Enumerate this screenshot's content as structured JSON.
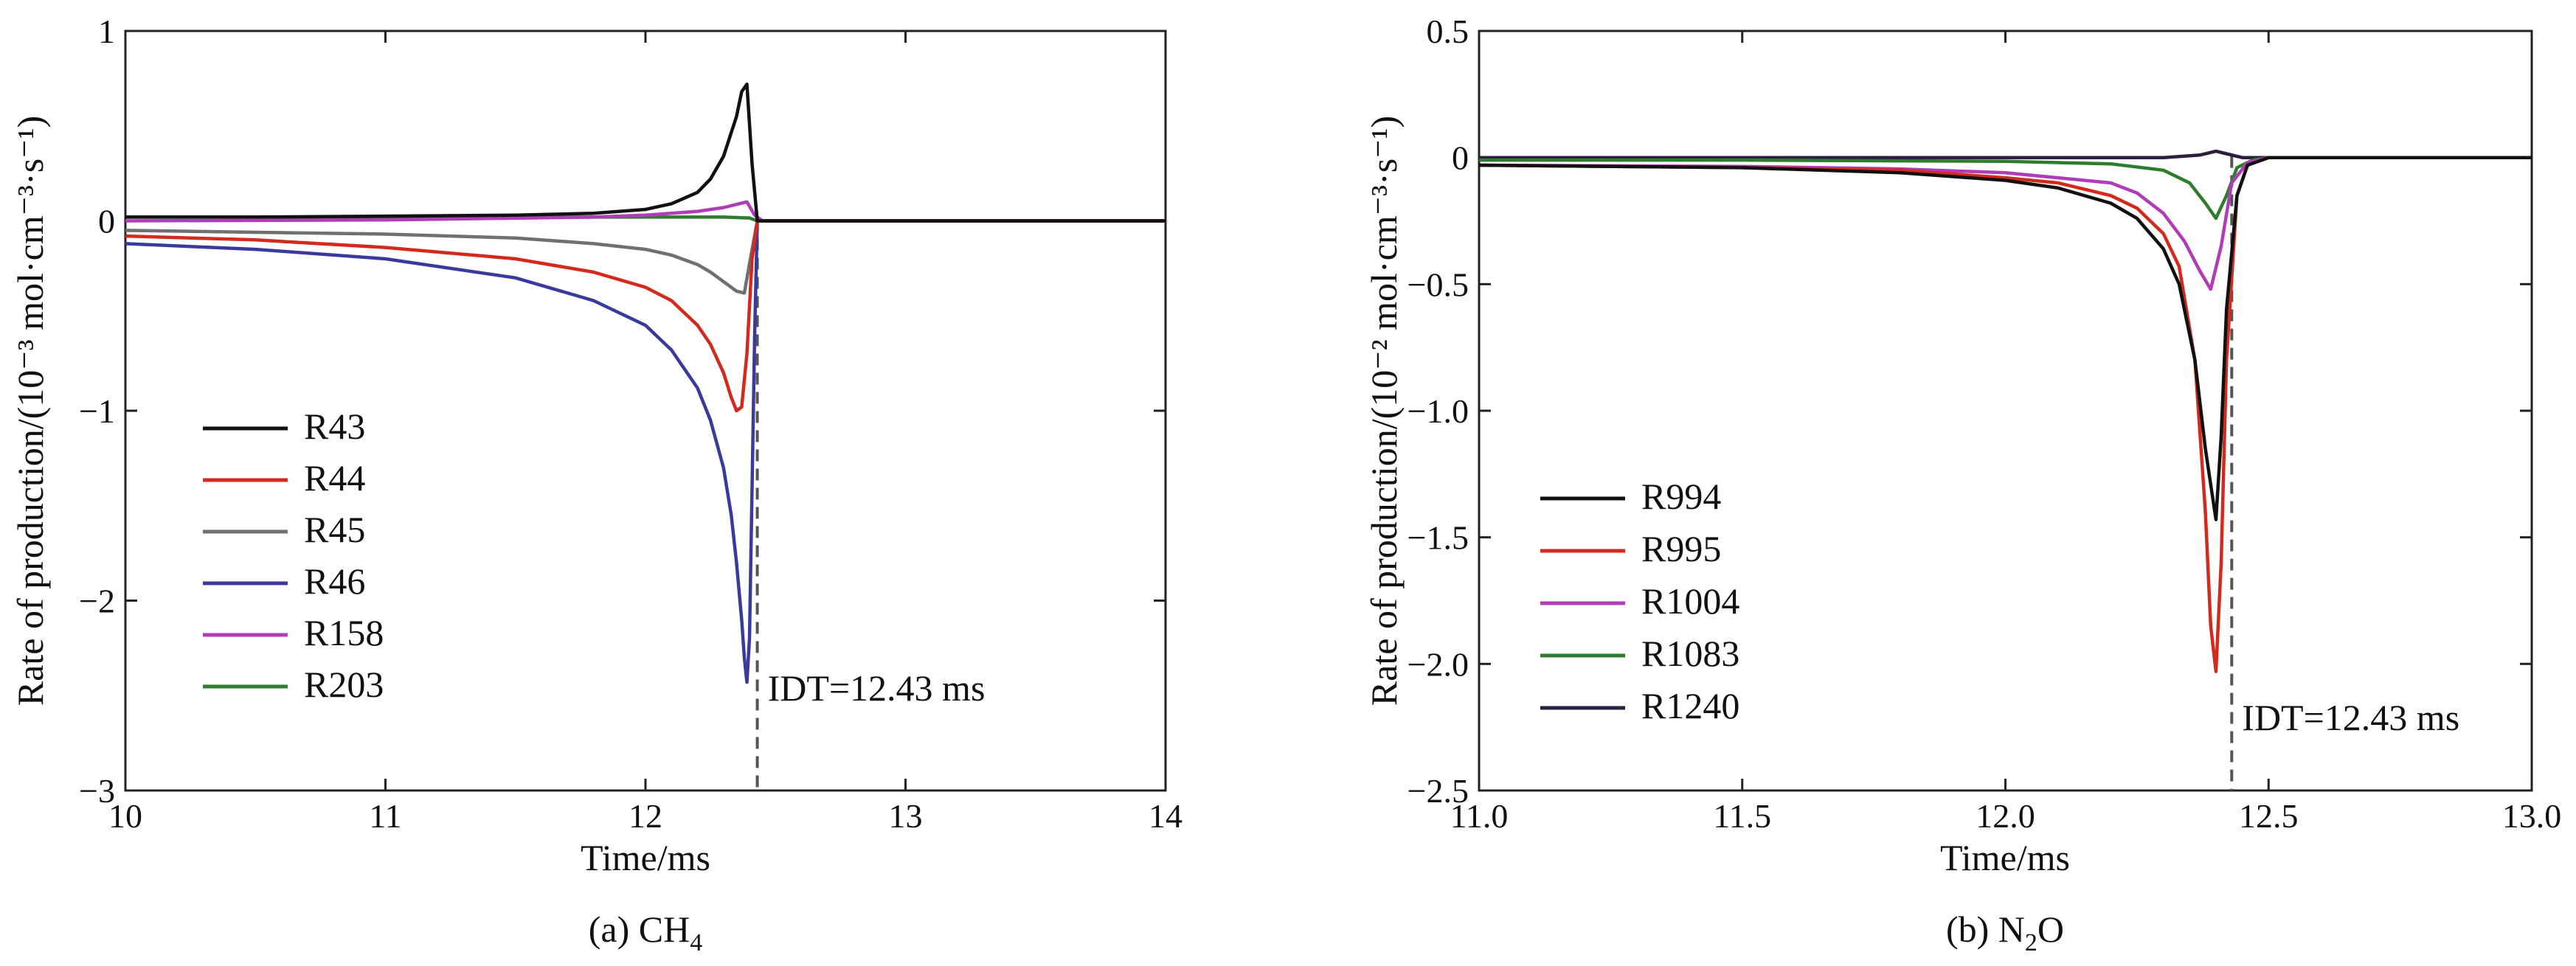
{
  "chart_data": [
    {
      "panel": "a",
      "type": "line",
      "caption": "(a) CH",
      "caption_sub": "4",
      "xlabel": "Time/ms",
      "ylabel": "Rate of production/(10⁻³ mol·cm⁻³·s⁻¹)",
      "xlim": [
        10,
        14
      ],
      "ylim": [
        -3,
        1
      ],
      "xticks": [
        10,
        11,
        12,
        13,
        14
      ],
      "yticks": [
        -3,
        -2,
        -1,
        0,
        1
      ],
      "xtick_labels": [
        "10",
        "11",
        "12",
        "13",
        "14"
      ],
      "ytick_labels": [
        "−3",
        "−2",
        "−1",
        "0",
        "1"
      ],
      "legend_position": "bottom-left",
      "annotation": {
        "text": "IDT=12.43 ms",
        "x": 12.43
      },
      "series": [
        {
          "name": "R43",
          "color": "#111111",
          "x": [
            10.0,
            10.5,
            11.0,
            11.5,
            11.8,
            12.0,
            12.1,
            12.2,
            12.25,
            12.3,
            12.35,
            12.37,
            12.39,
            12.41,
            12.43,
            12.45,
            13.0,
            14.0
          ],
          "y": [
            0.02,
            0.02,
            0.025,
            0.03,
            0.04,
            0.06,
            0.09,
            0.15,
            0.22,
            0.34,
            0.55,
            0.68,
            0.72,
            0.3,
            0.0,
            0.0,
            0.0,
            0.0
          ]
        },
        {
          "name": "R44",
          "color": "#d42a1e",
          "x": [
            10.0,
            10.5,
            11.0,
            11.5,
            11.8,
            12.0,
            12.1,
            12.2,
            12.25,
            12.3,
            12.33,
            12.35,
            12.37,
            12.39,
            12.41,
            12.43,
            12.45,
            13.0,
            14.0
          ],
          "y": [
            -0.08,
            -0.1,
            -0.14,
            -0.2,
            -0.27,
            -0.35,
            -0.42,
            -0.55,
            -0.65,
            -0.8,
            -0.93,
            -1.0,
            -0.98,
            -0.7,
            -0.2,
            0.0,
            0.0,
            0.0,
            0.0
          ]
        },
        {
          "name": "R45",
          "color": "#707070",
          "x": [
            10.0,
            10.5,
            11.0,
            11.5,
            11.8,
            12.0,
            12.1,
            12.2,
            12.25,
            12.3,
            12.35,
            12.38,
            12.41,
            12.43,
            12.45,
            13.0,
            14.0
          ],
          "y": [
            -0.05,
            -0.06,
            -0.07,
            -0.09,
            -0.12,
            -0.15,
            -0.18,
            -0.23,
            -0.27,
            -0.32,
            -0.37,
            -0.38,
            -0.15,
            0.0,
            0.0,
            0.0,
            0.0
          ]
        },
        {
          "name": "R46",
          "color": "#3a3a9c",
          "x": [
            10.0,
            10.5,
            11.0,
            11.5,
            11.8,
            12.0,
            12.1,
            12.2,
            12.25,
            12.3,
            12.33,
            12.35,
            12.37,
            12.38,
            12.39,
            12.4,
            12.42,
            12.43,
            12.45,
            13.0,
            14.0
          ],
          "y": [
            -0.12,
            -0.15,
            -0.2,
            -0.3,
            -0.42,
            -0.55,
            -0.68,
            -0.88,
            -1.05,
            -1.3,
            -1.55,
            -1.8,
            -2.1,
            -2.3,
            -2.43,
            -2.2,
            -0.6,
            0.0,
            0.0,
            0.0,
            0.0
          ]
        },
        {
          "name": "R158",
          "color": "#b03cb8",
          "x": [
            10.0,
            11.0,
            11.8,
            12.0,
            12.2,
            12.3,
            12.36,
            12.39,
            12.42,
            12.45,
            13.0,
            14.0
          ],
          "y": [
            0.0,
            0.005,
            0.02,
            0.03,
            0.05,
            0.07,
            0.09,
            0.1,
            0.03,
            0.0,
            0.0,
            0.0
          ]
        },
        {
          "name": "R203",
          "color": "#2e7d2e",
          "x": [
            10.0,
            11.0,
            12.0,
            12.3,
            12.4,
            12.43,
            12.45,
            13.0,
            14.0
          ],
          "y": [
            0.02,
            0.02,
            0.02,
            0.02,
            0.015,
            0.0,
            0.0,
            0.0,
            0.0
          ]
        }
      ]
    },
    {
      "panel": "b",
      "type": "line",
      "caption": "(b) N",
      "caption_sub": "2",
      "caption_tail": "O",
      "xlabel": "Time/ms",
      "ylabel": "Rate of production/(10⁻² mol·cm⁻³·s⁻¹)",
      "xlim": [
        11.0,
        13.0
      ],
      "ylim": [
        -2.5,
        0.5
      ],
      "xticks": [
        11.0,
        11.5,
        12.0,
        12.5,
        13.0
      ],
      "yticks": [
        -2.5,
        -2.0,
        -1.5,
        -1.0,
        -0.5,
        0,
        0.5
      ],
      "xtick_labels": [
        "11.0",
        "11.5",
        "12.0",
        "12.5",
        "13.0"
      ],
      "ytick_labels": [
        "−2.5",
        "−2.0",
        "−1.5",
        "−1.0",
        "−0.5",
        "0",
        "0.5"
      ],
      "legend_position": "bottom-left",
      "annotation": {
        "text": "IDT=12.43 ms",
        "x": 12.43
      },
      "series": [
        {
          "name": "R994",
          "color": "#111111",
          "x": [
            11.0,
            11.5,
            11.8,
            12.0,
            12.1,
            12.2,
            12.25,
            12.3,
            12.33,
            12.36,
            12.38,
            12.4,
            12.41,
            12.42,
            12.44,
            12.46,
            12.5,
            13.0
          ],
          "y": [
            -0.03,
            -0.04,
            -0.06,
            -0.09,
            -0.12,
            -0.18,
            -0.24,
            -0.36,
            -0.5,
            -0.8,
            -1.15,
            -1.43,
            -1.1,
            -0.6,
            -0.15,
            -0.03,
            0.0,
            0.0
          ]
        },
        {
          "name": "R995",
          "color": "#d42a1e",
          "x": [
            11.0,
            11.5,
            11.8,
            12.0,
            12.1,
            12.2,
            12.25,
            12.3,
            12.33,
            12.36,
            12.38,
            12.39,
            12.4,
            12.41,
            12.42,
            12.44,
            12.46,
            12.5,
            13.0
          ],
          "y": [
            -0.03,
            -0.04,
            -0.05,
            -0.08,
            -0.1,
            -0.15,
            -0.2,
            -0.3,
            -0.43,
            -0.8,
            -1.4,
            -1.85,
            -2.03,
            -1.6,
            -0.8,
            -0.15,
            -0.03,
            0.0,
            0.0
          ]
        },
        {
          "name": "R1004",
          "color": "#b03cb8",
          "x": [
            11.0,
            11.5,
            11.8,
            12.0,
            12.1,
            12.2,
            12.25,
            12.3,
            12.34,
            12.37,
            12.39,
            12.41,
            12.43,
            12.46,
            12.5,
            13.0
          ],
          "y": [
            -0.03,
            -0.035,
            -0.045,
            -0.06,
            -0.08,
            -0.1,
            -0.14,
            -0.22,
            -0.33,
            -0.45,
            -0.52,
            -0.35,
            -0.1,
            -0.02,
            0.0,
            0.0
          ]
        },
        {
          "name": "R1083",
          "color": "#2e7d2e",
          "x": [
            11.0,
            11.5,
            12.0,
            12.2,
            12.3,
            12.35,
            12.38,
            12.4,
            12.42,
            12.44,
            12.47,
            12.5,
            13.0
          ],
          "y": [
            -0.01,
            -0.01,
            -0.015,
            -0.025,
            -0.05,
            -0.1,
            -0.18,
            -0.24,
            -0.15,
            -0.04,
            -0.01,
            0.0,
            0.0
          ]
        },
        {
          "name": "R1240",
          "color": "#2a1f3d",
          "x": [
            11.0,
            11.5,
            12.0,
            12.3,
            12.37,
            12.4,
            12.42,
            12.45,
            12.5,
            13.0
          ],
          "y": [
            0.0,
            0.0,
            0.0,
            0.0,
            0.01,
            0.025,
            0.015,
            0.0,
            0.0,
            0.0
          ]
        }
      ]
    }
  ]
}
